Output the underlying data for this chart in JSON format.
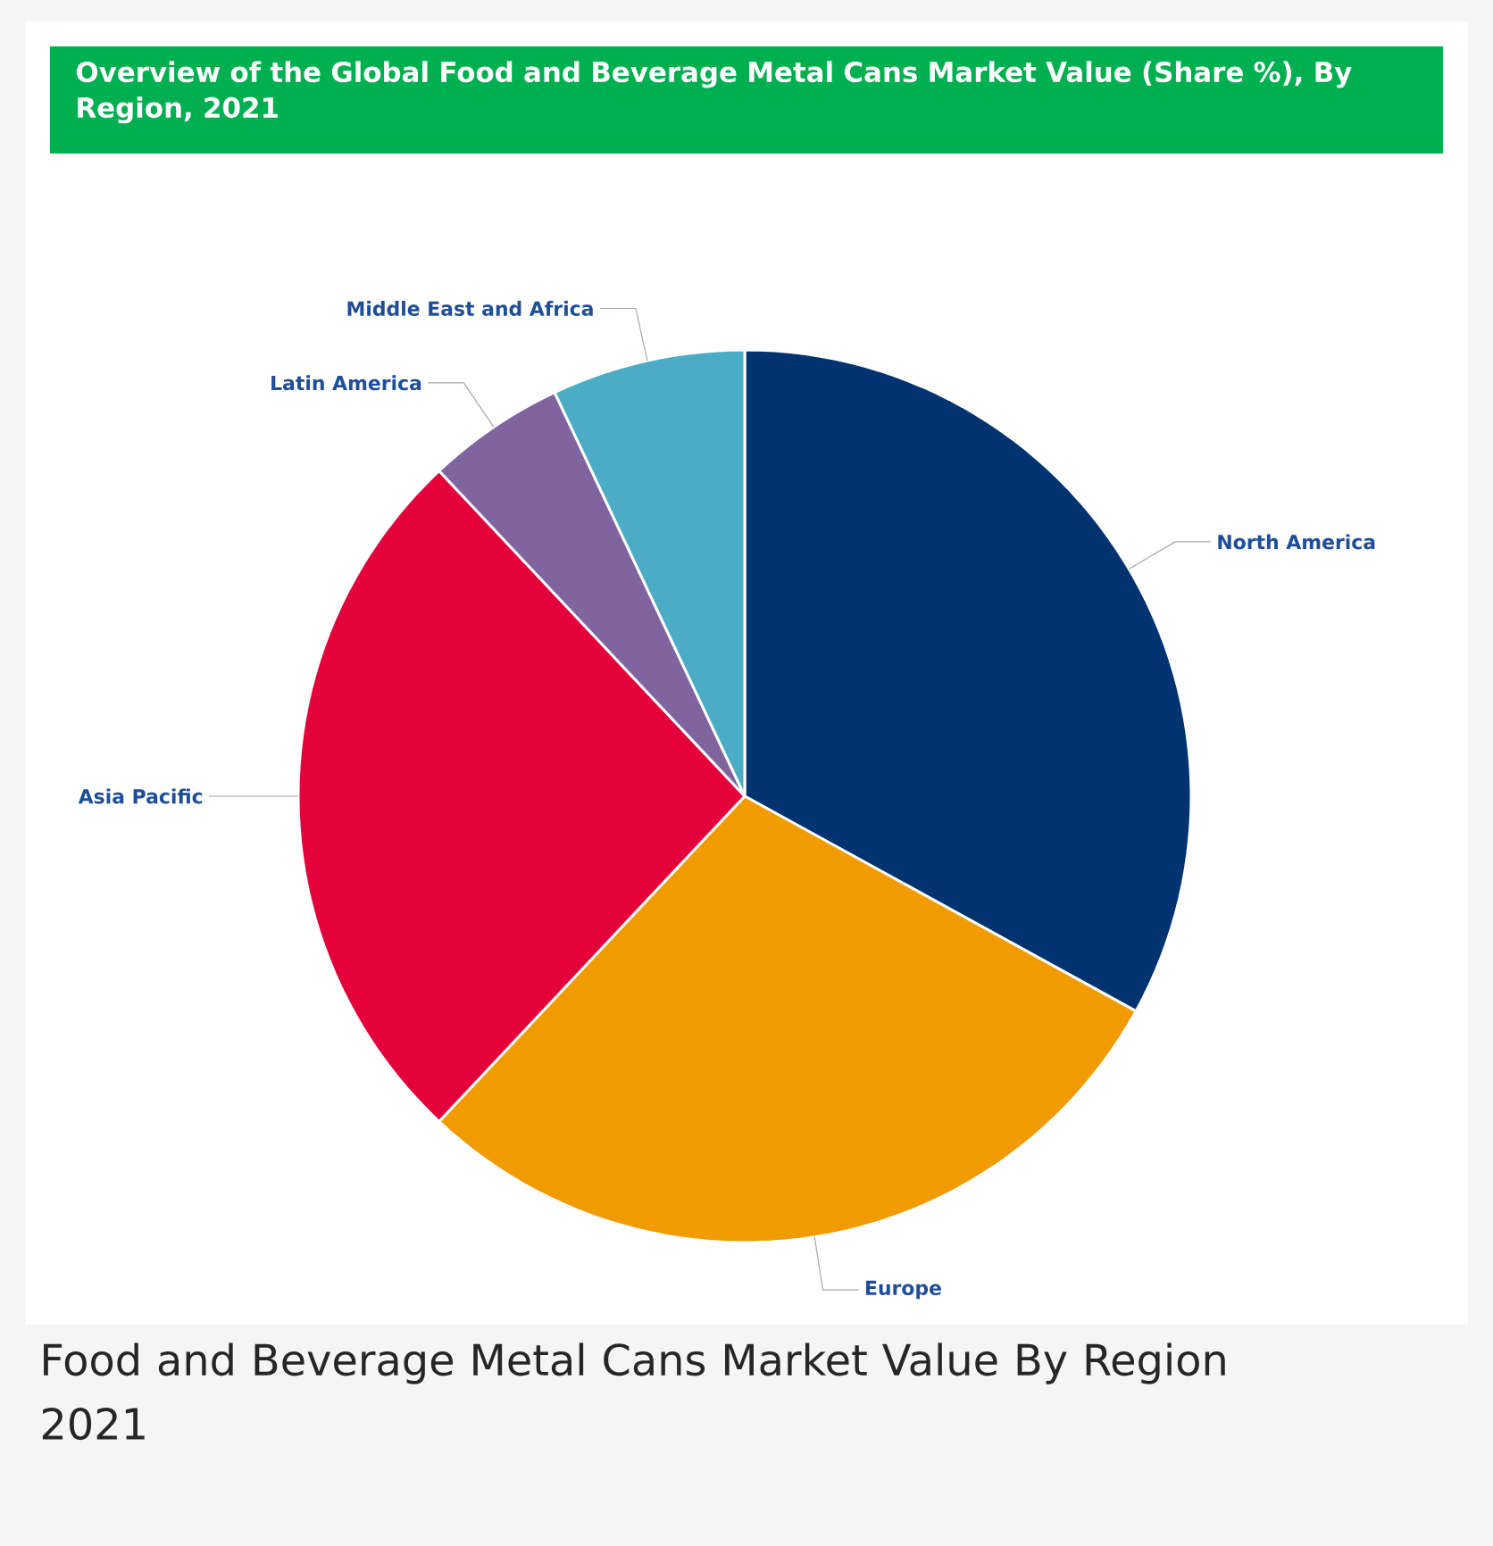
{
  "chart_data": {
    "type": "pie",
    "title": "Overview of the Global Food and Beverage Metal Cans Market Value (Share %), By Region, 2021",
    "categories": [
      "North America",
      "Europe",
      "Asia Pacific",
      "Latin America",
      "Middle East and Africa"
    ],
    "values": [
      33,
      29,
      26,
      5,
      7
    ],
    "colors": [
      "#00336f",
      "#f29b00",
      "#e4003b",
      "#8064a0",
      "#4bacc6"
    ],
    "annotations": [
      "Food and Beverage Metal Cans Market Value By Region 2021"
    ]
  }
}
